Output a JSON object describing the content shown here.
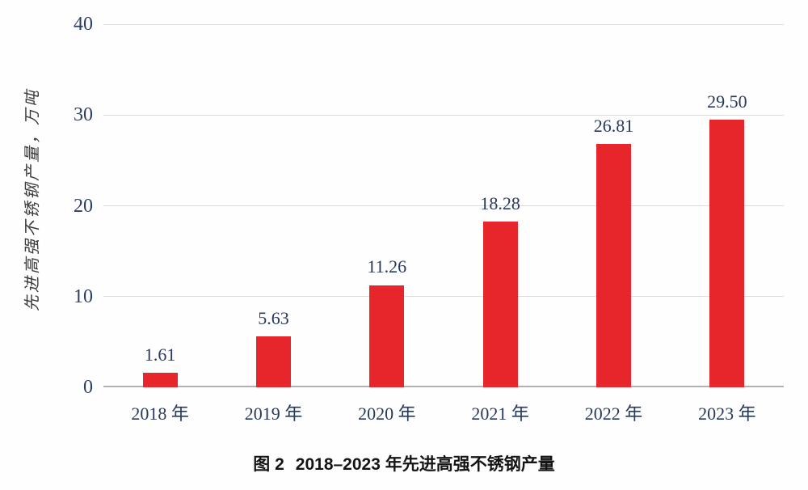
{
  "figure": {
    "caption_prefix": "图 2",
    "caption_text": "2018–2023 年先进高强不锈钢产量"
  },
  "chart_data": {
    "type": "bar",
    "categories": [
      "2018 年",
      "2019 年",
      "2020 年",
      "2021 年",
      "2022 年",
      "2023 年"
    ],
    "values": [
      1.61,
      5.63,
      11.26,
      18.28,
      26.81,
      29.5
    ],
    "value_labels": [
      "1.61",
      "5.63",
      "11.26",
      "18.28",
      "26.81",
      "29.50"
    ],
    "title": "图 2 2018–2023 年先进高强不锈钢产量",
    "xlabel": "",
    "ylabel": "先进高强不锈钢产量，万吨",
    "ylim": [
      0,
      40
    ],
    "yticks": [
      0,
      10,
      20,
      30,
      40
    ],
    "grid": true,
    "legend": "none",
    "bar_color": "#e6262b",
    "label_color": "#28395e",
    "gridline_color": "#dbdbdb",
    "axis_color": "#b3b3b3"
  }
}
